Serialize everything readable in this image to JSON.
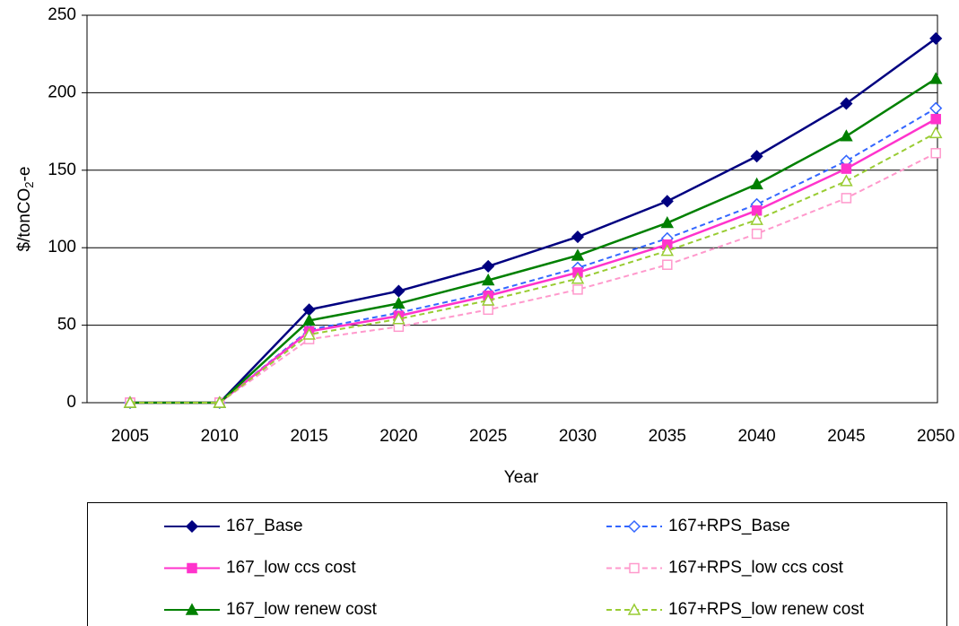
{
  "chart_data": {
    "type": "line",
    "x_label": "Year",
    "y_label": [
      "$/tonCO",
      "2",
      "-e"
    ],
    "categories": [
      "2005",
      "2010",
      "2015",
      "2020",
      "2025",
      "2030",
      "2035",
      "2040",
      "2045",
      "2050"
    ],
    "ylim": [
      0,
      250
    ],
    "yticks": [
      0,
      50,
      100,
      150,
      200,
      250
    ],
    "grid": true,
    "legend": "bottom",
    "series": [
      {
        "name": "167_Base",
        "color": "#000080",
        "dash": false,
        "marker": "diamond",
        "filled": true,
        "values": [
          0,
          0,
          60,
          72,
          88,
          107,
          130,
          159,
          193,
          235
        ]
      },
      {
        "name": "167+RPS_Base",
        "color": "#3366ff",
        "dash": true,
        "marker": "diamond",
        "filled": false,
        "values": [
          0,
          0,
          47,
          58,
          71,
          87,
          106,
          128,
          156,
          190
        ]
      },
      {
        "name": "167_low ccs cost",
        "color": "#ff33cc",
        "dash": false,
        "marker": "square",
        "filled": true,
        "values": [
          0,
          0,
          46,
          56,
          69,
          84,
          102,
          124,
          151,
          183
        ]
      },
      {
        "name": "167+RPS_low ccs cost",
        "color": "#ff99cc",
        "dash": true,
        "marker": "square",
        "filled": false,
        "values": [
          0,
          0,
          41,
          49,
          60,
          73,
          89,
          109,
          132,
          161
        ]
      },
      {
        "name": "167_low renew cost",
        "color": "#008000",
        "dash": false,
        "marker": "triangle",
        "filled": true,
        "values": [
          0,
          0,
          53,
          64,
          79,
          95,
          116,
          141,
          172,
          209
        ]
      },
      {
        "name": "167+RPS_low renew cost",
        "color": "#99cc33",
        "dash": true,
        "marker": "triangle",
        "filled": false,
        "values": [
          0,
          0,
          44,
          54,
          66,
          80,
          98,
          118,
          143,
          174
        ]
      }
    ]
  }
}
